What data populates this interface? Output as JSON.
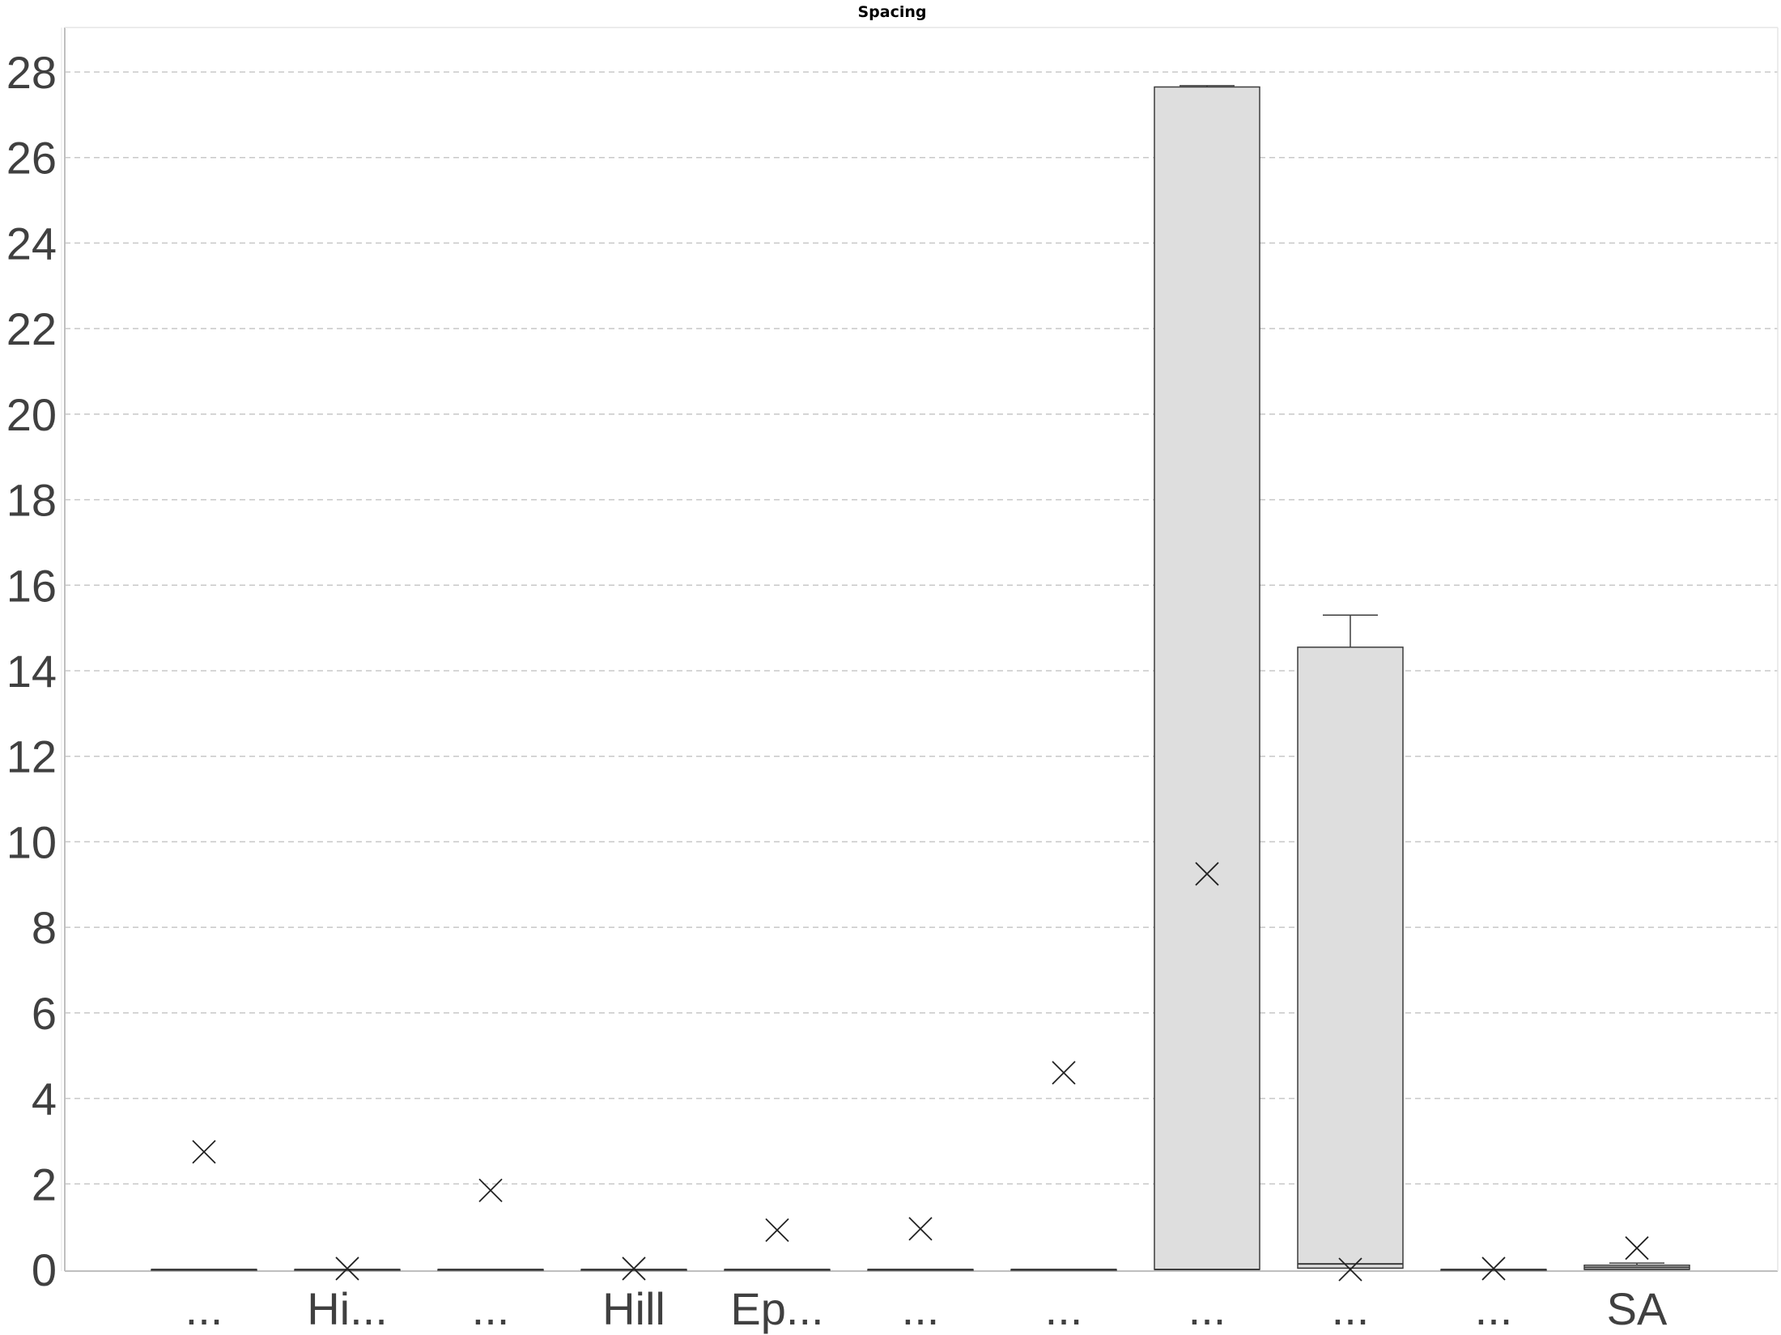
{
  "chart_data": {
    "type": "boxplot",
    "title": "Spacing",
    "xlabel": "",
    "ylabel": "",
    "ylim": [
      0,
      29
    ],
    "yticks": [
      0,
      2,
      4,
      6,
      8,
      10,
      12,
      14,
      16,
      18,
      20,
      22,
      24,
      26,
      28
    ],
    "grid": true,
    "categories": [
      "...",
      "Hi...",
      "...",
      "Hill",
      "Ep...",
      "...",
      "...",
      "...",
      "...",
      "...",
      "SA"
    ],
    "boxes": [
      {
        "min": 0,
        "q1": 0,
        "median": 0,
        "q3": 0,
        "max": 0,
        "mean": 2.75
      },
      {
        "min": 0,
        "q1": 0,
        "median": 0,
        "q3": 0,
        "max": 0,
        "mean": 0.02
      },
      {
        "min": 0,
        "q1": 0,
        "median": 0,
        "q3": 0,
        "max": 0,
        "mean": 1.85
      },
      {
        "min": 0,
        "q1": 0,
        "median": 0,
        "q3": 0,
        "max": 0,
        "mean": 0.02
      },
      {
        "min": 0,
        "q1": 0,
        "median": 0,
        "q3": 0,
        "max": 0,
        "mean": 0.92
      },
      {
        "min": 0,
        "q1": 0,
        "median": 0,
        "q3": 0,
        "max": 0,
        "mean": 0.95
      },
      {
        "min": 0,
        "q1": 0,
        "median": 0,
        "q3": 0,
        "max": 0,
        "mean": 4.6
      },
      {
        "min": 0,
        "q1": 0,
        "median": 0,
        "q3": 27.65,
        "max": 27.68,
        "mean": 9.25
      },
      {
        "min": 0.03,
        "q1": 0.03,
        "median": 0.13,
        "q3": 14.55,
        "max": 15.3,
        "mean": 0
      },
      {
        "min": 0,
        "q1": 0,
        "median": 0,
        "q3": 0,
        "max": 0,
        "mean": 0.02
      },
      {
        "min": 0,
        "q1": 0,
        "median": 0.05,
        "q3": 0.1,
        "max": 0.15,
        "mean": 0.5
      }
    ],
    "colors": {
      "box_fill": "#dedede",
      "box_stroke": "#3c3c3c",
      "grid": "#c8c8c8",
      "text": "#404040",
      "axis": "#bfbfbf"
    }
  }
}
